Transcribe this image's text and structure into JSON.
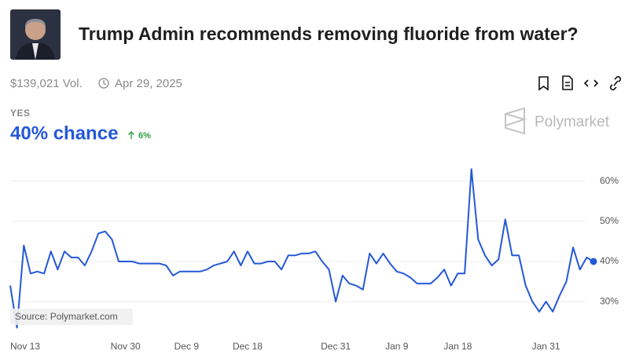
{
  "header": {
    "title": "Trump Admin recommends removing fluoride from water?",
    "volume": "$139,021 Vol.",
    "end_date": "Apr 29, 2025"
  },
  "market": {
    "outcome": "YES",
    "chance": "40% chance",
    "change": "6%",
    "brand": "Polymarket",
    "source": "Source: Polymarket.com"
  },
  "chart_data": {
    "type": "line",
    "x": [
      "Nov 13",
      "Nov 14",
      "Nov 15",
      "Nov 16",
      "Nov 17",
      "Nov 18",
      "Nov 19",
      "Nov 20",
      "Nov 21",
      "Nov 22",
      "Nov 23",
      "Nov 24",
      "Nov 25",
      "Nov 26",
      "Nov 27",
      "Nov 28",
      "Nov 29",
      "Nov 30",
      "Dec 1",
      "Dec 2",
      "Dec 3",
      "Dec 4",
      "Dec 5",
      "Dec 6",
      "Dec 7",
      "Dec 8",
      "Dec 9",
      "Dec 10",
      "Dec 11",
      "Dec 12",
      "Dec 13",
      "Dec 14",
      "Dec 15",
      "Dec 16",
      "Dec 17",
      "Dec 18",
      "Dec 19",
      "Dec 20",
      "Dec 21",
      "Dec 22",
      "Dec 23",
      "Dec 24",
      "Dec 25",
      "Dec 26",
      "Dec 27",
      "Dec 28",
      "Dec 29",
      "Dec 30",
      "Dec 31",
      "Jan 1",
      "Jan 2",
      "Jan 3",
      "Jan 4",
      "Jan 5",
      "Jan 6",
      "Jan 7",
      "Jan 8",
      "Jan 9",
      "Jan 10",
      "Jan 11",
      "Jan 12",
      "Jan 13",
      "Jan 14",
      "Jan 15",
      "Jan 16",
      "Jan 17",
      "Jan 18",
      "Jan 19",
      "Jan 20",
      "Jan 21",
      "Jan 22",
      "Jan 23",
      "Jan 24",
      "Jan 25",
      "Jan 26",
      "Jan 27",
      "Jan 28",
      "Jan 29",
      "Jan 30",
      "Jan 31",
      "Feb 1",
      "Feb 2",
      "Feb 3",
      "Feb 4",
      "Feb 5",
      "Feb 6",
      "Feb 7"
    ],
    "series": [
      {
        "name": "Yes",
        "color": "#2458d8",
        "values": [
          34,
          23.5,
          44,
          37,
          37.5,
          37,
          42.5,
          38,
          42.5,
          41,
          41,
          39,
          42.5,
          47,
          47.5,
          45.5,
          40,
          40,
          40,
          39.5,
          39.5,
          39.5,
          39.5,
          39,
          36.5,
          37.5,
          37.5,
          37.5,
          37.5,
          38,
          39,
          39.5,
          40,
          42.5,
          39,
          42.5,
          39.5,
          39.5,
          40,
          40,
          38,
          41.5,
          41.5,
          42,
          42,
          42.5,
          40,
          38,
          30,
          36.5,
          34.5,
          34,
          33,
          42,
          39.5,
          42,
          39.5,
          37.5,
          37,
          36,
          34.5,
          34.5,
          34.5,
          36,
          38,
          34,
          37,
          37,
          63,
          45.5,
          41.5,
          39,
          40.5,
          50.5,
          41.5,
          41.5,
          34,
          30,
          27.5,
          30,
          27.5,
          31.5,
          35,
          43.5,
          38,
          41,
          40
        ]
      }
    ],
    "xticks": [
      "Nov 13",
      "Nov 30",
      "Dec 9",
      "Dec 18",
      "Dec 31",
      "Jan 9",
      "Jan 18",
      "Jan 31"
    ],
    "ylim": [
      22,
      67
    ],
    "yticks": [
      {
        "value": 30,
        "label": "30%"
      },
      {
        "value": 40,
        "label": "40%"
      },
      {
        "value": 50,
        "label": "50%"
      },
      {
        "value": 60,
        "label": "60%"
      }
    ],
    "grid": true
  }
}
